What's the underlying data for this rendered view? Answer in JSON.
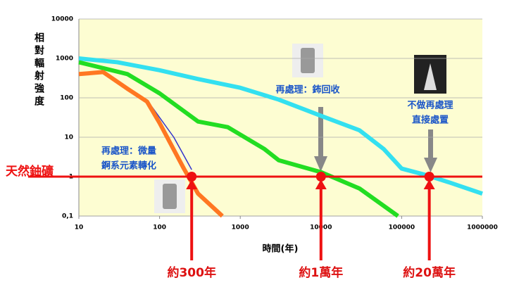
{
  "chart_data": {
    "type": "line",
    "y_label": "相對輻射強度",
    "x_label": "時間(年)",
    "log_x": true,
    "log_y": true,
    "grid": true,
    "xlim": [
      10,
      1000000
    ],
    "ylim": [
      0.1,
      10000
    ],
    "xticks": [
      10,
      100,
      1000,
      10000,
      100000,
      1000000
    ],
    "yticks": [
      10000,
      1000,
      100,
      10,
      1,
      {
        "value": 0.1,
        "label": "0,1"
      }
    ],
    "series": [
      {
        "color": "#33e0f0",
        "x": [
          10,
          30,
          100,
          300,
          1000,
          3000,
          10000,
          30000,
          60000,
          100000,
          200000,
          400000,
          1000000
        ],
        "values": [
          1000,
          800,
          500,
          300,
          180,
          90,
          35,
          15,
          5,
          1.6,
          1.1,
          0.7,
          0.37
        ]
      },
      {
        "color": "#22dd22",
        "x": [
          10,
          40,
          100,
          300,
          700,
          2000,
          3000,
          10000,
          30000,
          90000
        ],
        "values": [
          800,
          400,
          130,
          25,
          18,
          5,
          2.6,
          1.3,
          0.5,
          0.1
        ]
      },
      {
        "color": "#3333cc",
        "x": [
          80,
          150,
          250
        ],
        "values": [
          60,
          10,
          1.5
        ]
      },
      {
        "color": "#ff7722",
        "x": [
          10,
          20,
          40,
          70,
          100,
          200,
          300,
          600
        ],
        "values": [
          400,
          450,
          170,
          80,
          23,
          1.6,
          0.37,
          0.1
        ]
      }
    ],
    "reference_line": {
      "value": 1,
      "label": "天然鈾礦",
      "color": "#ee1111"
    },
    "markers": [
      {
        "x": 250,
        "y": 1,
        "label": "約300年"
      },
      {
        "x": 10000,
        "y": 1,
        "label": "約1萬年"
      },
      {
        "x": 220000,
        "y": 1,
        "label": "約20萬年"
      }
    ],
    "annotations": [
      "再處理：微量",
      "錒系元素轉化",
      "再處理：鈽回收",
      "不做再處理",
      "直接處置"
    ]
  }
}
